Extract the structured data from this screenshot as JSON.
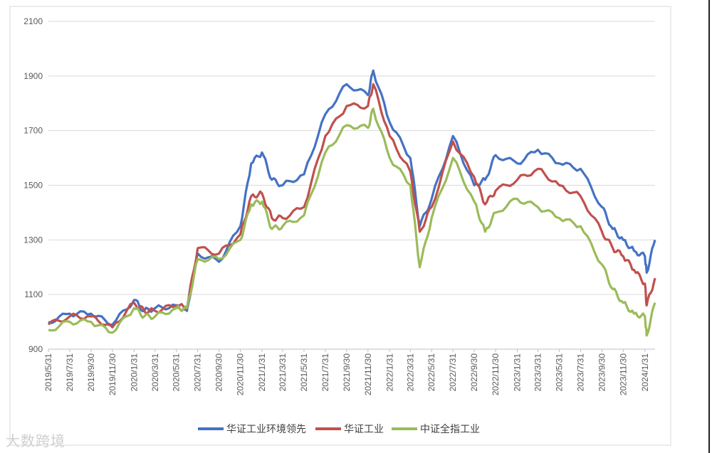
{
  "chart_data": {
    "type": "line",
    "title": "",
    "xlabel": "",
    "ylabel": "",
    "ylim": [
      900,
      2100
    ],
    "yticks": [
      900,
      1100,
      1300,
      1500,
      1700,
      1900,
      2100
    ],
    "grid": true,
    "legend_position": "bottom",
    "x_tick_labels": [
      "2019/5/31",
      "2019/7/31",
      "2019/9/30",
      "2019/11/30",
      "2020/1/31",
      "2020/3/31",
      "2020/5/31",
      "2020/7/31",
      "2020/9/30",
      "2020/11/30",
      "2021/1/31",
      "2021/3/31",
      "2021/5/31",
      "2021/7/31",
      "2021/9/30",
      "2021/11/30",
      "2022/1/31",
      "2022/3/31",
      "2022/5/31",
      "2022/7/31",
      "2022/9/30",
      "2022/11/30",
      "2023/1/31",
      "2023/3/31",
      "2023/5/31",
      "2023/7/31",
      "2023/9/30",
      "2023/11/30",
      "2024/1/31"
    ],
    "x": [
      "2019/5/31",
      "2019/7/31",
      "2019/9/30",
      "2019/11/30",
      "2020/1/31",
      "2020/2/29",
      "2020/3/31",
      "2020/5/31",
      "2020/6/30",
      "2020/7/31",
      "2020/9/30",
      "2020/11/30",
      "2020/12/31",
      "2021/1/31",
      "2021/2/28",
      "2021/3/31",
      "2021/5/31",
      "2021/7/31",
      "2021/9/30",
      "2021/11/30",
      "2021/12/15",
      "2022/1/31",
      "2022/3/31",
      "2022/4/27",
      "2022/5/31",
      "2022/7/31",
      "2022/9/30",
      "2022/10/31",
      "2022/11/30",
      "2023/1/31",
      "2023/3/31",
      "2023/5/31",
      "2023/7/31",
      "2023/9/30",
      "2023/10/31",
      "2023/11/30",
      "2023/12/31",
      "2024/1/31",
      "2024/2/5",
      "2024/2/29"
    ],
    "series": [
      {
        "name": "华证工业环境领先",
        "color": "#4472C4",
        "values": [
          1000,
          1030,
          1030,
          990,
          1080,
          1040,
          1050,
          1060,
          1040,
          1250,
          1220,
          1350,
          1580,
          1620,
          1520,
          1500,
          1540,
          1760,
          1870,
          1830,
          1920,
          1730,
          1600,
          1350,
          1450,
          1680,
          1500,
          1520,
          1610,
          1580,
          1630,
          1580,
          1560,
          1420,
          1340,
          1300,
          1260,
          1240,
          1180,
          1300
        ]
      },
      {
        "name": "华证工业",
        "color": "#C0504D",
        "values": [
          990,
          1020,
          1020,
          980,
          1070,
          1040,
          1040,
          1060,
          1050,
          1270,
          1250,
          1320,
          1460,
          1470,
          1380,
          1380,
          1420,
          1680,
          1790,
          1790,
          1870,
          1680,
          1550,
          1330,
          1420,
          1660,
          1530,
          1430,
          1480,
          1520,
          1560,
          1500,
          1460,
          1330,
          1270,
          1240,
          1190,
          1140,
          1060,
          1160
        ]
      },
      {
        "name": "中证全指工业",
        "color": "#9BBB59",
        "values": [
          970,
          1000,
          1000,
          960,
          1050,
          1020,
          1020,
          1050,
          1050,
          1230,
          1230,
          1300,
          1430,
          1440,
          1340,
          1350,
          1390,
          1620,
          1720,
          1710,
          1780,
          1600,
          1500,
          1200,
          1380,
          1600,
          1440,
          1330,
          1400,
          1450,
          1420,
          1380,
          1350,
          1210,
          1120,
          1070,
          1030,
          1020,
          950,
          1070
        ]
      }
    ]
  },
  "watermark": "大数跨境"
}
